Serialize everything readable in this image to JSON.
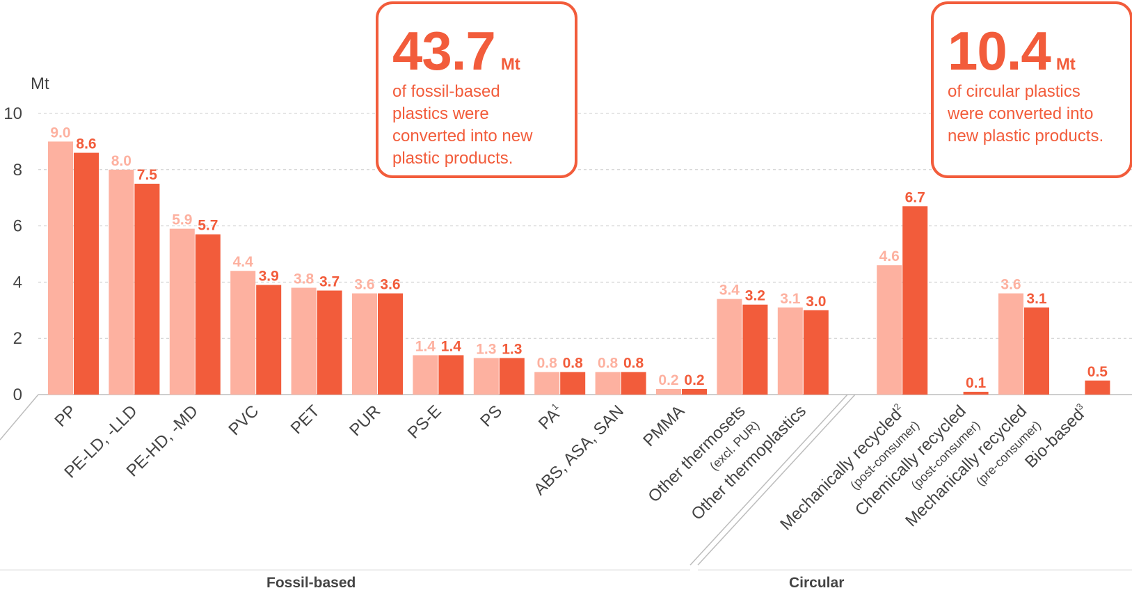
{
  "chart_data": {
    "type": "bar",
    "ylabel": "Mt",
    "ylim": [
      0,
      10
    ],
    "yticks": [
      0,
      2,
      4,
      6,
      8,
      10
    ],
    "grid": true,
    "colors": {
      "light": "#fdb1a0",
      "dark": "#f25c3b",
      "axis": "#bdbdbd",
      "tick_text": "#444444"
    },
    "categories": [
      {
        "label": "PP",
        "light": 9.0,
        "dark": 8.6
      },
      {
        "label": "PE-LD, -LLD",
        "light": 8.0,
        "dark": 7.5
      },
      {
        "label": "PE-HD, -MD",
        "light": 5.9,
        "dark": 5.7
      },
      {
        "label": "PVC",
        "light": 4.4,
        "dark": 3.9
      },
      {
        "label": "PET",
        "light": 3.8,
        "dark": 3.7
      },
      {
        "label": "PUR",
        "light": 3.6,
        "dark": 3.6
      },
      {
        "label": "PS-E",
        "light": 1.4,
        "dark": 1.4
      },
      {
        "label": "PS",
        "light": 1.3,
        "dark": 1.3
      },
      {
        "label": "PA",
        "sup": "1",
        "light": 0.8,
        "dark": 0.8
      },
      {
        "label": "ABS, ASA, SAN",
        "light": 0.8,
        "dark": 0.8
      },
      {
        "label": "PMMA",
        "light": 0.2,
        "dark": 0.2
      },
      {
        "label": "Other thermosets",
        "sub": "(excl. PUR)",
        "light": 3.4,
        "dark": 3.2
      },
      {
        "label": "Other thermoplastics",
        "light": 3.1,
        "dark": 3.0
      },
      {
        "label": "Mechanically recycled",
        "sup": "2",
        "sub": "(post-consumer)",
        "light": 4.6,
        "dark": 6.7
      },
      {
        "label": "Chemically recycled",
        "sub": "(post-consumer)",
        "light": null,
        "dark": 0.1
      },
      {
        "label": "Mechanically recycled",
        "sub": "(pre-consumer)",
        "light": 3.6,
        "dark": 3.1
      },
      {
        "label": "Bio-based",
        "sup": "3",
        "light": null,
        "dark": 0.5
      }
    ],
    "groups": [
      {
        "label": "Fossil-based",
        "from": 0,
        "to": 12
      },
      {
        "label": "Circular",
        "from": 13,
        "to": 16
      }
    ]
  },
  "callouts": {
    "fossil": {
      "value": "43.7",
      "unit": "Mt",
      "text": "of fossil-based plastics were converted into new plastic products."
    },
    "circular": {
      "value": "10.4",
      "unit": "Mt",
      "text": "of circular plastics were converted into new plastic products."
    }
  }
}
